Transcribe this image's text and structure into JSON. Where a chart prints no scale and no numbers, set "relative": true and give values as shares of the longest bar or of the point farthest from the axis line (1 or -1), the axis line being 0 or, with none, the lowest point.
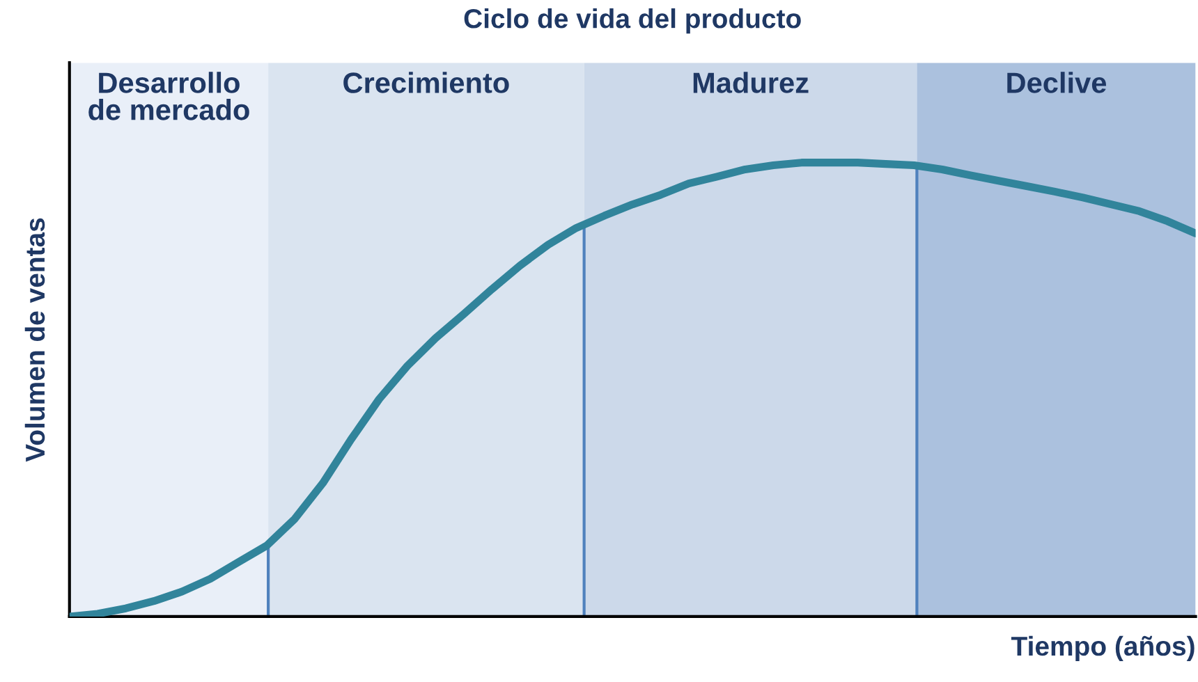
{
  "chart_data": {
    "type": "line",
    "title": "Ciclo de vida del producto",
    "xlabel": "Tiempo (años)",
    "ylabel": "Volumen de ventas",
    "relative": true,
    "categories": [
      null,
      null,
      null,
      null,
      null,
      null,
      null,
      null,
      null,
      null,
      null,
      null,
      null,
      null,
      null,
      null,
      null,
      null,
      null,
      null,
      null,
      null,
      null,
      null,
      null,
      null,
      null,
      null,
      null,
      null,
      null,
      null,
      null,
      null,
      null,
      null,
      null,
      null,
      null,
      null,
      null
    ],
    "series": [
      {
        "color": "#31849b",
        "values": [
          0,
          0.006,
          0.018,
          0.034,
          0.055,
          0.083,
          0.12,
          0.156,
          0.215,
          0.294,
          0.39,
          0.479,
          0.552,
          0.613,
          0.666,
          0.721,
          0.773,
          0.819,
          0.856,
          0.883,
          0.908,
          0.929,
          0.954,
          0.969,
          0.985,
          0.994,
          1,
          1,
          1,
          0.997,
          0.994,
          0.985,
          0.972,
          0.96,
          0.948,
          0.936,
          0.923,
          0.908,
          0.893,
          0.871,
          0.844
        ]
      }
    ],
    "annotations": [
      "Desarrollo\nde mercado",
      "Crecimiento",
      "Madurez",
      "Declive"
    ],
    "legend": false,
    "marker": "none",
    "line_style": "solid"
  }
}
